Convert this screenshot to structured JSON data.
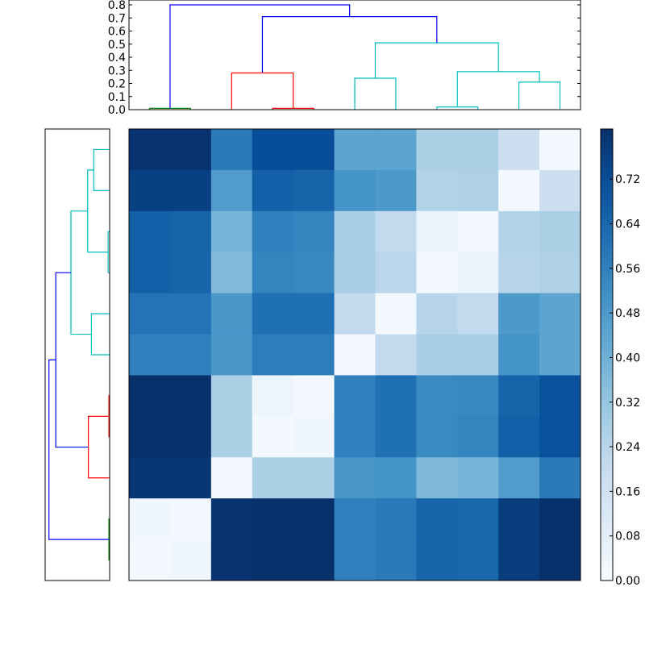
{
  "chart_data": {
    "type": "heatmap",
    "title": "",
    "description": "Clustered heatmap with top and left dendrograms and colorbar",
    "colormap": "Blues",
    "n_rows": 11,
    "n_cols": 11,
    "values": [
      [
        0.8,
        0.8,
        0.58,
        0.72,
        0.72,
        0.44,
        0.44,
        0.27,
        0.27,
        0.18,
        0.02
      ],
      [
        0.76,
        0.76,
        0.47,
        0.66,
        0.65,
        0.5,
        0.48,
        0.25,
        0.26,
        0.02,
        0.18
      ],
      [
        0.66,
        0.65,
        0.38,
        0.56,
        0.55,
        0.28,
        0.21,
        0.05,
        0.02,
        0.25,
        0.27
      ],
      [
        0.66,
        0.65,
        0.36,
        0.55,
        0.54,
        0.28,
        0.23,
        0.02,
        0.05,
        0.24,
        0.26
      ],
      [
        0.6,
        0.6,
        0.49,
        0.61,
        0.61,
        0.21,
        0.02,
        0.24,
        0.21,
        0.48,
        0.44
      ],
      [
        0.56,
        0.56,
        0.49,
        0.57,
        0.57,
        0.02,
        0.21,
        0.28,
        0.28,
        0.5,
        0.44
      ],
      [
        0.81,
        0.81,
        0.27,
        0.04,
        0.02,
        0.56,
        0.61,
        0.53,
        0.54,
        0.65,
        0.71
      ],
      [
        0.81,
        0.81,
        0.27,
        0.02,
        0.03,
        0.56,
        0.61,
        0.53,
        0.55,
        0.66,
        0.71
      ],
      [
        0.79,
        0.79,
        0.02,
        0.27,
        0.27,
        0.49,
        0.5,
        0.37,
        0.38,
        0.47,
        0.58
      ],
      [
        0.03,
        0.02,
        0.8,
        0.81,
        0.81,
        0.56,
        0.58,
        0.65,
        0.64,
        0.77,
        0.81
      ],
      [
        0.02,
        0.03,
        0.8,
        0.81,
        0.81,
        0.56,
        0.58,
        0.65,
        0.64,
        0.77,
        0.81
      ]
    ],
    "colorbar": {
      "range": [
        0.0,
        0.81
      ],
      "ticks": [
        "0.00",
        "0.08",
        "0.16",
        "0.24",
        "0.32",
        "0.40",
        "0.48",
        "0.56",
        "0.64",
        "0.72"
      ]
    },
    "top_dendrogram": {
      "ylim": [
        0.0,
        0.8
      ],
      "yticks": [
        "0.0",
        "0.1",
        "0.2",
        "0.3",
        "0.4",
        "0.5",
        "0.6",
        "0.7",
        "0.8"
      ],
      "links": [
        {
          "color": "#008000",
          "x": [
            0,
            1
          ],
          "height": 0.01
        },
        {
          "color": "#ff0000",
          "x": [
            3,
            4
          ],
          "height": 0.01
        },
        {
          "color": "#ff0000",
          "x": [
            2,
            3.5
          ],
          "height": 0.28
        },
        {
          "color": "#00bfbf",
          "x": [
            5,
            6
          ],
          "height": 0.24
        },
        {
          "color": "#00bfbf",
          "x": [
            7,
            8
          ],
          "height": 0.02
        },
        {
          "color": "#00bfbf",
          "x": [
            9,
            10
          ],
          "height": 0.21
        },
        {
          "color": "#00bfbf",
          "x": [
            7.5,
            9.5
          ],
          "height": 0.29
        },
        {
          "color": "#00bfbf",
          "x": [
            5.5,
            8.5
          ],
          "height": 0.51
        },
        {
          "color": "#0000ff",
          "x": [
            2.75,
            7
          ],
          "height": 0.71
        },
        {
          "color": "#0000ff",
          "x": [
            0.5,
            4.875
          ],
          "height": 0.8
        }
      ]
    },
    "left_dendrogram": {
      "links": [
        {
          "color": "#00bfbf",
          "y": [
            0,
            1
          ],
          "height": 0.21
        },
        {
          "color": "#00bfbf",
          "y": [
            2,
            3
          ],
          "height": 0.02
        },
        {
          "color": "#00bfbf",
          "y": [
            0.5,
            2.5
          ],
          "height": 0.29
        },
        {
          "color": "#00bfbf",
          "y": [
            4,
            5
          ],
          "height": 0.24
        },
        {
          "color": "#00bfbf",
          "y": [
            1.5,
            4.5
          ],
          "height": 0.51
        },
        {
          "color": "#ff0000",
          "y": [
            6,
            7
          ],
          "height": 0.01
        },
        {
          "color": "#ff0000",
          "y": [
            6.5,
            8
          ],
          "height": 0.28
        },
        {
          "color": "#0000ff",
          "y": [
            3,
            7.25
          ],
          "height": 0.71
        },
        {
          "color": "#008000",
          "y": [
            9,
            10
          ],
          "height": 0.01
        },
        {
          "color": "#0000ff",
          "y": [
            5.125,
            9.5
          ],
          "height": 0.8
        }
      ]
    }
  }
}
